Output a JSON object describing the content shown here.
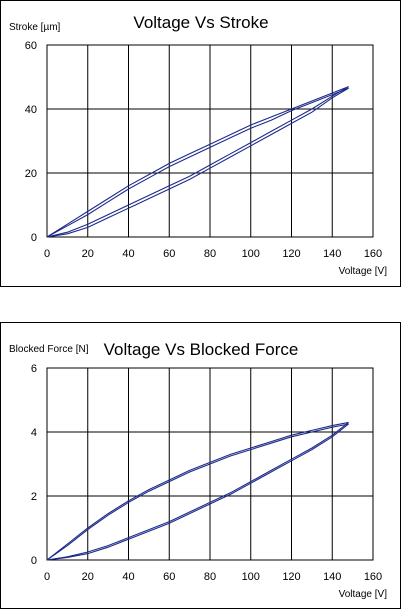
{
  "chart_data": [
    {
      "type": "line",
      "title": "Voltage Vs Stroke",
      "ylabel": "Stroke [µm]",
      "xlabel": "Voltage [V]",
      "xlim": [
        0,
        160
      ],
      "ylim": [
        0,
        60
      ],
      "xticks": [
        "0",
        "20",
        "40",
        "60",
        "80",
        "100",
        "120",
        "140",
        "160"
      ],
      "yticks": [
        "0",
        "20",
        "40",
        "60"
      ],
      "grid": true,
      "series": [
        {
          "values": [
            [
              0,
              0
            ],
            [
              10,
              4
            ],
            [
              20,
              8
            ],
            [
              30,
              12
            ],
            [
              40,
              16
            ],
            [
              50,
              19.5
            ],
            [
              60,
              23
            ],
            [
              70,
              26
            ],
            [
              80,
              29
            ],
            [
              90,
              32
            ],
            [
              100,
              35
            ],
            [
              110,
              37.5
            ],
            [
              120,
              40
            ],
            [
              130,
              42.5
            ],
            [
              140,
              45
            ],
            [
              148,
              47
            ]
          ]
        },
        {
          "values": [
            [
              148,
              47
            ],
            [
              140,
              44
            ],
            [
              130,
              40
            ],
            [
              120,
              36.5
            ],
            [
              110,
              33
            ],
            [
              100,
              29.5
            ],
            [
              90,
              26
            ],
            [
              80,
              22.5
            ],
            [
              70,
              19
            ],
            [
              60,
              16
            ],
            [
              50,
              13
            ],
            [
              40,
              10
            ],
            [
              30,
              7
            ],
            [
              20,
              4
            ],
            [
              10,
              1.5
            ],
            [
              0,
              0
            ]
          ]
        },
        {
          "values": [
            [
              0,
              0
            ],
            [
              10,
              3.5
            ],
            [
              20,
              7
            ],
            [
              30,
              11
            ],
            [
              40,
              15
            ],
            [
              50,
              18.5
            ],
            [
              60,
              22
            ],
            [
              70,
              25
            ],
            [
              80,
              28
            ],
            [
              90,
              31
            ],
            [
              100,
              34
            ],
            [
              110,
              36.5
            ],
            [
              120,
              39.5
            ],
            [
              130,
              42
            ],
            [
              140,
              44.5
            ],
            [
              148,
              46.5
            ]
          ]
        },
        {
          "values": [
            [
              148,
              46.5
            ],
            [
              140,
              43.5
            ],
            [
              130,
              39
            ],
            [
              120,
              35.5
            ],
            [
              110,
              32
            ],
            [
              100,
              28.5
            ],
            [
              90,
              25
            ],
            [
              80,
              21.5
            ],
            [
              70,
              18
            ],
            [
              60,
              15
            ],
            [
              50,
              12
            ],
            [
              40,
              9
            ],
            [
              30,
              6
            ],
            [
              20,
              3
            ],
            [
              10,
              1
            ],
            [
              0,
              0
            ]
          ]
        }
      ]
    },
    {
      "type": "line",
      "title": "Voltage Vs Blocked Force",
      "ylabel": "Blocked Force [N]",
      "xlabel": "Voltage [V]",
      "xlim": [
        0,
        160
      ],
      "ylim": [
        0,
        6
      ],
      "xticks": [
        "0",
        "20",
        "40",
        "60",
        "80",
        "100",
        "120",
        "140",
        "160"
      ],
      "yticks": [
        "0",
        "2",
        "4",
        "6"
      ],
      "grid": true,
      "series": [
        {
          "values": [
            [
              0,
              0
            ],
            [
              10,
              0.5
            ],
            [
              20,
              1.0
            ],
            [
              30,
              1.45
            ],
            [
              40,
              1.85
            ],
            [
              50,
              2.2
            ],
            [
              60,
              2.5
            ],
            [
              70,
              2.8
            ],
            [
              80,
              3.05
            ],
            [
              90,
              3.3
            ],
            [
              100,
              3.5
            ],
            [
              110,
              3.7
            ],
            [
              120,
              3.9
            ],
            [
              130,
              4.05
            ],
            [
              140,
              4.2
            ],
            [
              148,
              4.3
            ]
          ]
        },
        {
          "values": [
            [
              148,
              4.3
            ],
            [
              140,
              3.9
            ],
            [
              130,
              3.5
            ],
            [
              120,
              3.15
            ],
            [
              110,
              2.8
            ],
            [
              100,
              2.45
            ],
            [
              90,
              2.1
            ],
            [
              80,
              1.8
            ],
            [
              70,
              1.5
            ],
            [
              60,
              1.2
            ],
            [
              50,
              0.95
            ],
            [
              40,
              0.7
            ],
            [
              30,
              0.45
            ],
            [
              20,
              0.25
            ],
            [
              10,
              0.1
            ],
            [
              0,
              0
            ]
          ]
        },
        {
          "values": [
            [
              0,
              0
            ],
            [
              10,
              0.45
            ],
            [
              20,
              0.95
            ],
            [
              30,
              1.4
            ],
            [
              40,
              1.8
            ],
            [
              50,
              2.15
            ],
            [
              60,
              2.45
            ],
            [
              70,
              2.75
            ],
            [
              80,
              3.0
            ],
            [
              90,
              3.25
            ],
            [
              100,
              3.45
            ],
            [
              110,
              3.65
            ],
            [
              120,
              3.85
            ],
            [
              130,
              4.0
            ],
            [
              140,
              4.15
            ],
            [
              148,
              4.25
            ]
          ]
        },
        {
          "values": [
            [
              148,
              4.25
            ],
            [
              140,
              3.85
            ],
            [
              130,
              3.45
            ],
            [
              120,
              3.1
            ],
            [
              110,
              2.75
            ],
            [
              100,
              2.4
            ],
            [
              90,
              2.05
            ],
            [
              80,
              1.75
            ],
            [
              70,
              1.45
            ],
            [
              60,
              1.15
            ],
            [
              50,
              0.9
            ],
            [
              40,
              0.65
            ],
            [
              30,
              0.4
            ],
            [
              20,
              0.2
            ],
            [
              10,
              0.08
            ],
            [
              0,
              0
            ]
          ]
        }
      ]
    }
  ]
}
